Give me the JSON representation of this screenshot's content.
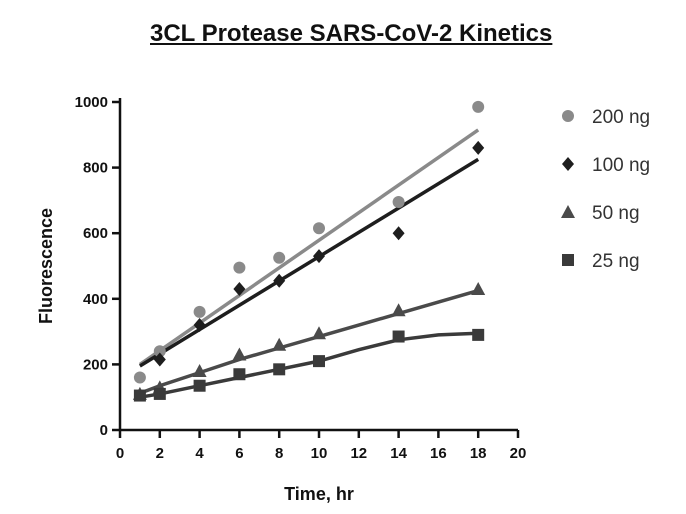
{
  "chart_data": {
    "type": "scatter",
    "title": "3CL Protease SARS-CoV-2 Kinetics",
    "xlabel": "Time, hr",
    "ylabel": "Fluorescence",
    "xlim": [
      0,
      20
    ],
    "ylim": [
      0,
      1000
    ],
    "xticks": [
      0,
      2,
      4,
      6,
      8,
      10,
      12,
      14,
      16,
      18,
      20
    ],
    "yticks": [
      0,
      200,
      400,
      600,
      800,
      1000
    ],
    "grid": false,
    "legend_position": "right",
    "series": [
      {
        "name": "200 ng",
        "marker": "circle",
        "color": "#8a8a8a",
        "x": [
          1,
          2,
          4,
          6,
          8,
          10,
          14,
          18
        ],
        "y": [
          160,
          240,
          360,
          495,
          525,
          615,
          695,
          985
        ],
        "fit": {
          "x": [
            1,
            18
          ],
          "y": [
            200,
            915
          ]
        }
      },
      {
        "name": "100 ng",
        "marker": "diamond",
        "color": "#1e1e1e",
        "x": [
          2,
          4,
          6,
          8,
          10,
          14,
          18
        ],
        "y": [
          215,
          320,
          430,
          455,
          530,
          600,
          860
        ],
        "fit": {
          "x": [
            1,
            18
          ],
          "y": [
            195,
            825
          ]
        }
      },
      {
        "name": "50 ng",
        "marker": "triangle",
        "color": "#4a4a4a",
        "x": [
          1,
          2,
          4,
          6,
          8,
          10,
          14,
          18
        ],
        "y": [
          110,
          130,
          180,
          230,
          260,
          295,
          365,
          430
        ],
        "fit": {
          "x": [
            1,
            2,
            4,
            6,
            8,
            10,
            12,
            14,
            16,
            18
          ],
          "y": [
            112,
            135,
            175,
            215,
            250,
            285,
            320,
            355,
            390,
            425
          ]
        }
      },
      {
        "name": "25 ng",
        "marker": "square",
        "color": "#3a3a3a",
        "x": [
          1,
          2,
          4,
          6,
          8,
          10,
          14,
          18
        ],
        "y": [
          105,
          110,
          135,
          170,
          185,
          210,
          285,
          290
        ],
        "fit": {
          "x": [
            1,
            2,
            4,
            6,
            8,
            10,
            12,
            14,
            16,
            18
          ],
          "y": [
            100,
            110,
            135,
            160,
            185,
            210,
            245,
            275,
            290,
            295
          ]
        }
      }
    ]
  }
}
